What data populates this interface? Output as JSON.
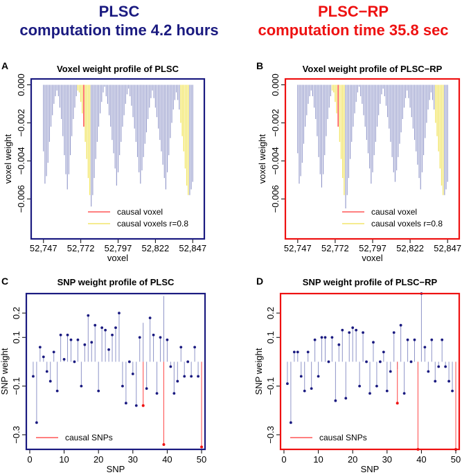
{
  "header": {
    "left_title": "PLSC",
    "left_subtitle": "computation time 4.2 hours",
    "left_color": "#1a1a80",
    "right_title": "PLSC−RP",
    "right_subtitle": "computation time 35.8 sec",
    "right_color": "#ee1111"
  },
  "colors": {
    "bar": "#8e94c8",
    "causal": "#ff5555",
    "correlated": "#f2e66a",
    "snp_point": "#1a1a80",
    "causal_point": "#ee1111"
  },
  "chart_data": [
    {
      "id": "A",
      "type": "bar",
      "label": "A",
      "title": "Voxel weight profile of PLSC",
      "xlabel": "voxel",
      "ylabel": "voxel weight",
      "xlim": [
        52742,
        52852
      ],
      "ylim": [
        -0.0069,
        0.0002
      ],
      "xticks": [
        52747,
        52772,
        52797,
        52822,
        52847
      ],
      "xtick_labels": [
        "52,747",
        "52,772",
        "52,797",
        "52,822",
        "52,847"
      ],
      "yticks": [
        0.0,
        -0.002,
        -0.004,
        -0.006
      ],
      "ytick_labels": [
        "0.000",
        "−0.002",
        "−0.004",
        "−0.006"
      ],
      "x_start": 52747,
      "values": [
        -0.0035,
        -0.0052,
        -0.0048,
        -0.0041,
        -0.003,
        -0.0022,
        -0.0016,
        -0.001,
        -0.0006,
        -0.0003,
        -0.0006,
        -0.0012,
        -0.0018,
        -0.0027,
        -0.0037,
        -0.0047,
        -0.0055,
        -0.0047,
        -0.0037,
        -0.0027,
        -0.0018,
        -0.0012,
        -0.0006,
        -0.0003,
        -0.0004,
        -0.0009,
        -0.0015,
        -0.0022,
        -0.003,
        -0.0039,
        -0.0049,
        -0.0058,
        -0.0064,
        -0.0058,
        -0.0049,
        -0.0039,
        -0.003,
        -0.0022,
        -0.0015,
        -0.0009,
        -0.0004,
        -0.0001,
        -0.0006,
        -0.001,
        -0.0016,
        -0.0022,
        -0.0029,
        -0.0036,
        -0.0044,
        -0.0053,
        -0.0046,
        -0.0037,
        -0.003,
        -0.0022,
        -0.0016,
        -0.001,
        -0.0005,
        -0.0002,
        -0.0006,
        -0.0011,
        -0.0017,
        -0.0023,
        -0.003,
        -0.0038,
        -0.0046,
        -0.0052,
        -0.0045,
        -0.0038,
        -0.0031,
        -0.0025,
        -0.0018,
        -0.0012,
        -0.0007,
        -0.0003,
        -0.0007,
        -0.0012,
        -0.0017,
        -0.0023,
        -0.0029,
        -0.0035,
        -0.0042,
        -0.0049,
        -0.0055,
        -0.0046,
        -0.0037,
        -0.0028,
        -0.002,
        -0.0013,
        -0.0008,
        -0.0004,
        -0.0008,
        -0.0013,
        -0.002,
        -0.0027,
        -0.0035,
        -0.0044,
        -0.0053,
        -0.0058,
        -0.0058,
        -0.0055,
        -0.0051
      ],
      "causal_index": 27,
      "correlated_indices": [
        23,
        24,
        25,
        26,
        28,
        29,
        30,
        31,
        92,
        93,
        94,
        95,
        96,
        97
      ],
      "legend": {
        "position": "bottom-right",
        "entries": [
          "causal voxel",
          "causal voxels r=0.8"
        ]
      }
    },
    {
      "id": "B",
      "type": "bar",
      "label": "B",
      "title": "Voxel weight profile of PLSC−RP",
      "xlabel": "voxel",
      "ylabel": "voxel weight",
      "xlim": [
        52742,
        52852
      ],
      "ylim": [
        -0.0069,
        0.0002
      ],
      "xticks": [
        52747,
        52772,
        52797,
        52822,
        52847
      ],
      "xtick_labels": [
        "52,747",
        "52,772",
        "52,797",
        "52,822",
        "52,847"
      ],
      "yticks": [
        0.0,
        -0.002,
        -0.004,
        -0.006
      ],
      "ytick_labels": [
        "0.000",
        "−0.002",
        "−0.004",
        "−0.006"
      ],
      "x_start": 52747,
      "values": [
        -0.0036,
        -0.0052,
        -0.0048,
        -0.0041,
        -0.0031,
        -0.0022,
        -0.0016,
        -0.001,
        -0.0006,
        -0.0003,
        -0.0006,
        -0.0012,
        -0.0018,
        -0.0027,
        -0.0038,
        -0.0047,
        -0.0054,
        -0.0047,
        -0.0037,
        -0.0027,
        -0.0018,
        -0.0012,
        -0.0006,
        -0.0003,
        -0.0004,
        -0.0009,
        -0.0015,
        -0.0022,
        -0.003,
        -0.0039,
        -0.0049,
        -0.0058,
        -0.0065,
        -0.0058,
        -0.0049,
        -0.0039,
        -0.003,
        -0.0022,
        -0.0015,
        -0.0009,
        -0.0004,
        -0.0001,
        -0.0006,
        -0.001,
        -0.0016,
        -0.0022,
        -0.0029,
        -0.0036,
        -0.0044,
        -0.0052,
        -0.0046,
        -0.0037,
        -0.003,
        -0.0022,
        -0.0016,
        -0.001,
        -0.0005,
        -0.0002,
        -0.0006,
        -0.0011,
        -0.0017,
        -0.0023,
        -0.003,
        -0.0038,
        -0.0046,
        -0.0051,
        -0.0045,
        -0.0038,
        -0.0031,
        -0.0025,
        -0.0018,
        -0.0012,
        -0.0007,
        -0.0003,
        -0.0007,
        -0.0012,
        -0.0017,
        -0.0023,
        -0.0029,
        -0.0035,
        -0.0042,
        -0.0049,
        -0.0055,
        -0.0046,
        -0.0037,
        -0.0028,
        -0.002,
        -0.0013,
        -0.0008,
        -0.0004,
        -0.0008,
        -0.0013,
        -0.002,
        -0.0027,
        -0.0035,
        -0.0044,
        -0.0053,
        -0.0058,
        -0.0058,
        -0.0055,
        -0.0051
      ],
      "causal_index": 27,
      "correlated_indices": [
        23,
        24,
        25,
        26,
        28,
        29,
        30,
        31,
        92,
        93,
        94,
        95,
        96,
        97
      ],
      "legend": {
        "position": "bottom-right",
        "entries": [
          "causal voxel",
          "causal voxels r=0.8"
        ]
      }
    },
    {
      "id": "C",
      "type": "lollipop",
      "label": "C",
      "title": "SNP weight profile of PLSC",
      "xlabel": "SNP",
      "ylabel": "SNP weight",
      "xlim": [
        -1,
        51
      ],
      "ylim": [
        -0.36,
        0.28
      ],
      "xticks": [
        0,
        10,
        20,
        30,
        40,
        50
      ],
      "yticks": [
        0.2,
        0.1,
        -0.1,
        -0.3
      ],
      "ytick_labels": [
        "0.2",
        "0.1",
        "−0.1",
        "−0.3"
      ],
      "x": [
        1,
        2,
        3,
        4,
        5,
        6,
        7,
        8,
        9,
        10,
        11,
        12,
        13,
        14,
        15,
        16,
        17,
        18,
        19,
        20,
        21,
        22,
        23,
        24,
        25,
        26,
        27,
        28,
        29,
        30,
        31,
        32,
        33,
        34,
        35,
        36,
        37,
        38,
        39,
        40,
        41,
        42,
        43,
        44,
        45,
        46,
        47,
        48,
        49,
        50
      ],
      "values": [
        -0.06,
        -0.25,
        0.06,
        0.02,
        -0.04,
        -0.08,
        0.04,
        -0.12,
        0.11,
        0.01,
        0.11,
        0.09,
        0.0,
        0.09,
        -0.1,
        0.07,
        0.19,
        0.08,
        0.15,
        -0.12,
        0.14,
        0.13,
        0.05,
        0.11,
        0.14,
        0.2,
        -0.1,
        -0.17,
        0.0,
        -0.05,
        -0.18,
        0.1,
        0.16,
        -0.11,
        0.18,
        0.11,
        -0.13,
        0.1,
        0.27,
        0.09,
        -0.02,
        -0.13,
        -0.08,
        0.06,
        -0.06,
        0.0,
        -0.06,
        0.06,
        -0.06,
        0.0
      ],
      "causal_indices": [
        32,
        38,
        49
      ],
      "causal_values": [
        -0.18,
        -0.34,
        -0.35
      ],
      "legend": {
        "position": "bottom-left",
        "entries": [
          "causal SNPs"
        ]
      }
    },
    {
      "id": "D",
      "type": "lollipop",
      "label": "D",
      "title": "SNP weight profile of PLSC−RP",
      "xlabel": "SNP",
      "ylabel": "SNP weight",
      "xlim": [
        -1,
        51
      ],
      "ylim": [
        -0.36,
        0.28
      ],
      "xticks": [
        0,
        10,
        20,
        30,
        40,
        50
      ],
      "yticks": [
        0.2,
        0.1,
        -0.1,
        -0.3
      ],
      "ytick_labels": [
        "0.2",
        "0.1",
        "−0.1",
        "−0.3"
      ],
      "x": [
        1,
        2,
        3,
        4,
        5,
        6,
        7,
        8,
        9,
        10,
        11,
        12,
        13,
        14,
        15,
        16,
        17,
        18,
        19,
        20,
        21,
        22,
        23,
        24,
        25,
        26,
        27,
        28,
        29,
        30,
        31,
        32,
        33,
        34,
        35,
        36,
        37,
        38,
        39,
        40,
        41,
        42,
        43,
        44,
        45,
        46,
        47,
        48,
        49,
        50
      ],
      "values": [
        -0.09,
        -0.25,
        0.04,
        0.04,
        -0.06,
        -0.12,
        0.04,
        -0.11,
        0.09,
        -0.06,
        0.1,
        0.1,
        0.0,
        0.1,
        -0.16,
        0.07,
        0.13,
        -0.15,
        0.12,
        0.14,
        0.13,
        -0.1,
        0.12,
        0.0,
        -0.13,
        0.08,
        -0.1,
        0.0,
        0.04,
        -0.12,
        -0.04,
        0.12,
        -0.03,
        0.15,
        -0.13,
        0.09,
        0.0,
        0.09,
        -0.05,
        0.28,
        0.06,
        -0.04,
        0.09,
        -0.08,
        -0.02,
        0.09,
        -0.02,
        -0.08,
        -0.12,
        0.0
      ],
      "causal_indices": [
        32,
        38,
        49
      ],
      "causal_values": [
        -0.17,
        -0.36,
        -0.36
      ],
      "legend": {
        "position": "bottom-left",
        "entries": [
          "causal SNPs"
        ]
      }
    }
  ]
}
